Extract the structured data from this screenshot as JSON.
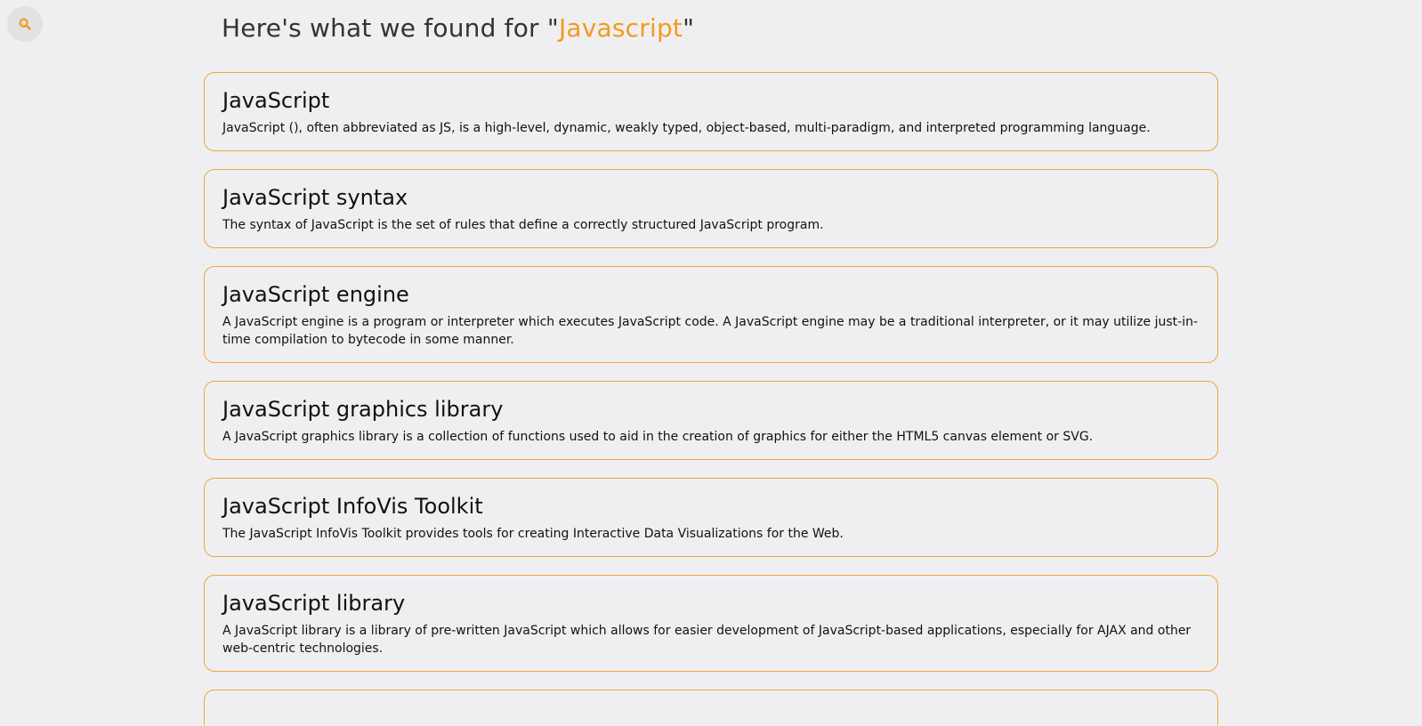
{
  "search_button": {
    "icon": "search-icon",
    "color": "#f29a1f"
  },
  "heading": {
    "prefix": "Here's what we found for \"",
    "query": "Javascript",
    "suffix": "\""
  },
  "accent_color": "#f29a1f",
  "results": [
    {
      "title": "JavaScript",
      "description": "JavaScript (), often abbreviated as JS, is a high-level, dynamic, weakly typed, object-based, multi-paradigm, and interpreted programming language."
    },
    {
      "title": "JavaScript syntax",
      "description": "The syntax of JavaScript is the set of rules that define a correctly structured JavaScript program."
    },
    {
      "title": "JavaScript engine",
      "description": "A JavaScript engine is a program or interpreter which executes JavaScript code. A JavaScript engine may be a traditional interpreter, or it may utilize just-in-time compilation to bytecode in some manner."
    },
    {
      "title": "JavaScript graphics library",
      "description": "A JavaScript graphics library is a collection of functions used to aid in the creation of graphics for either the HTML5 canvas element or SVG."
    },
    {
      "title": "JavaScript InfoVis Toolkit",
      "description": "The JavaScript InfoVis Toolkit provides tools for creating Interactive Data Visualizations for the Web."
    },
    {
      "title": "JavaScript library",
      "description": "A JavaScript library is a library of pre-written JavaScript which allows for easier development of JavaScript-based applications, especially for AJAX and other web-centric technologies."
    }
  ]
}
